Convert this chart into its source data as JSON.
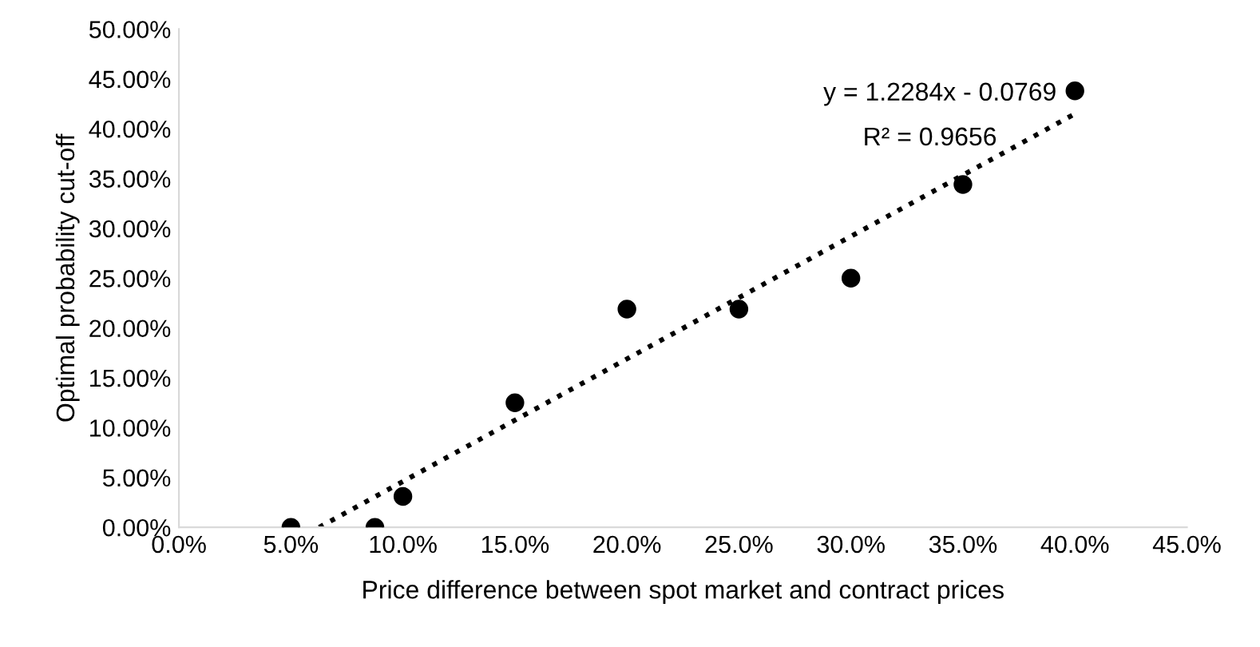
{
  "chart_data": {
    "type": "scatter",
    "xlabel": "Price difference between spot market and contract prices",
    "ylabel": "Optimal probability cut-off",
    "series": [
      {
        "color": "#000000",
        "marker": "circle",
        "x": [
          5,
          8.75,
          10,
          15,
          20,
          25,
          30,
          35,
          40
        ],
        "values": [
          0,
          0,
          3.1,
          12.5,
          21.9,
          21.9,
          25,
          34.4,
          43.8
        ]
      },
      {
        "type": "line",
        "color": "#000000",
        "line_style": "dotted",
        "x": [
          6.26,
          40
        ],
        "values": [
          0,
          41.5
        ]
      }
    ],
    "annotations": [
      "y = 1.2284x - 0.0769",
      "R² = 0.9656"
    ],
    "xlim": [
      0,
      45
    ],
    "ylim": [
      0,
      50
    ],
    "xticks": [
      {
        "value": 0,
        "label": "0.0%"
      },
      {
        "value": 5,
        "label": "5.0%"
      },
      {
        "value": 10,
        "label": "10.0%"
      },
      {
        "value": 15,
        "label": "15.0%"
      },
      {
        "value": 20,
        "label": "20.0%"
      },
      {
        "value": 25,
        "label": "25.0%"
      },
      {
        "value": 30,
        "label": "30.0%"
      },
      {
        "value": 35,
        "label": "35.0%"
      },
      {
        "value": 40,
        "label": "40.0%"
      },
      {
        "value": 45,
        "label": "45.0%"
      }
    ],
    "yticks": [
      {
        "value": 0,
        "label": "0.00%"
      },
      {
        "value": 5,
        "label": "5.00%"
      },
      {
        "value": 10,
        "label": "10.00%"
      },
      {
        "value": 15,
        "label": "15.00%"
      },
      {
        "value": 20,
        "label": "20.00%"
      },
      {
        "value": 25,
        "label": "25.00%"
      },
      {
        "value": 30,
        "label": "30.00%"
      },
      {
        "value": 35,
        "label": "35.00%"
      },
      {
        "value": 40,
        "label": "40.00%"
      },
      {
        "value": 45,
        "label": "45.00%"
      },
      {
        "value": 50,
        "label": "50.00%"
      }
    ],
    "grid": false,
    "legend": false
  }
}
